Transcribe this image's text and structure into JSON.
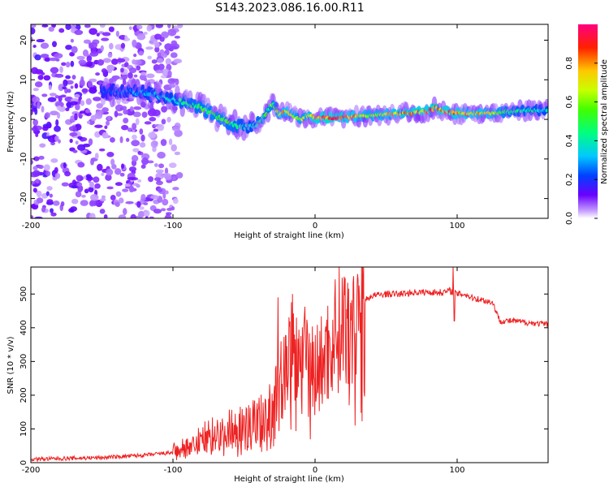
{
  "title": "S143.2023.086.16.00.R11",
  "chart_data": [
    {
      "type": "heatmap",
      "xlabel": "Height of straight line (km)",
      "ylabel": "Frequency (Hz)",
      "xlim": [
        -200,
        164
      ],
      "ylim": [
        -25,
        24
      ],
      "xticks": [
        -200,
        -100,
        0,
        100
      ],
      "yticks": [
        -20,
        -10,
        0,
        10,
        20
      ],
      "colorbar": {
        "label": "Normalized spectral amplitude",
        "range": [
          0.0,
          1.0
        ],
        "ticks": [
          0.0,
          0.2,
          0.4,
          0.6,
          0.8
        ],
        "tick_labels": [
          "0.0",
          "0.2",
          "0.4",
          "0.6",
          "0.8"
        ]
      },
      "ridge": {
        "x": [
          -150,
          -130,
          -110,
          -100,
          -90,
          -80,
          -70,
          -60,
          -50,
          -45,
          -40,
          -35,
          -30,
          -28,
          -25,
          -20,
          -15,
          -10,
          -5,
          0,
          10,
          20,
          40,
          60,
          80,
          85,
          90,
          100,
          120,
          140,
          164
        ],
        "y": [
          7,
          7,
          6,
          5,
          4,
          3,
          1,
          -1,
          -2,
          -2,
          -1,
          1,
          4,
          3,
          1,
          2,
          1,
          0,
          1,
          0.5,
          0.5,
          0.5,
          1,
          1.5,
          2,
          3,
          2,
          1.5,
          1.5,
          2,
          2.5
        ],
        "amplitude": [
          0.2,
          0.3,
          0.35,
          0.4,
          0.5,
          0.55,
          0.6,
          0.55,
          0.45,
          0.4,
          0.5,
          0.55,
          0.6,
          0.55,
          0.8,
          0.8,
          0.7,
          0.65,
          0.7,
          0.9,
          0.95,
          0.9,
          0.7,
          0.85,
          0.9,
          0.95,
          0.9,
          0.85,
          0.8,
          0.5,
          0.4
        ]
      },
      "noise_region_x": [
        -200,
        -110
      ]
    },
    {
      "type": "line",
      "xlabel": "Height of straight line (km)",
      "ylabel": "SNR (10 * v/v)",
      "xlim": [
        -200,
        164
      ],
      "ylim": [
        0,
        580
      ],
      "xticks": [
        -200,
        -100,
        0,
        100
      ],
      "yticks": [
        0,
        100,
        200,
        300,
        400,
        500
      ],
      "color": "#ee2222",
      "series": [
        {
          "name": "SNR",
          "x": [
            -200,
            -150,
            -120,
            -100,
            -90,
            -80,
            -70,
            -60,
            -50,
            -40,
            -30,
            -25,
            -20,
            -15,
            -10,
            -5,
            0,
            5,
            10,
            15,
            20,
            25,
            30,
            35,
            40,
            50,
            60,
            70,
            80,
            90,
            95,
            100,
            105,
            110,
            120,
            125,
            130,
            140,
            150,
            164
          ],
          "y": [
            10,
            15,
            22,
            30,
            45,
            70,
            90,
            100,
            110,
            130,
            170,
            230,
            300,
            350,
            320,
            300,
            280,
            300,
            340,
            390,
            420,
            440,
            460,
            480,
            495,
            500,
            500,
            505,
            505,
            505,
            510,
            500,
            500,
            490,
            480,
            475,
            420,
            420,
            415,
            410
          ]
        }
      ],
      "spikes": [
        {
          "x": -26,
          "y": 490
        },
        {
          "x": -16,
          "y": 500
        },
        {
          "x": -8,
          "y": 410
        },
        {
          "x": 97,
          "y": 580
        },
        {
          "x": 98,
          "y": 420
        }
      ]
    }
  ]
}
